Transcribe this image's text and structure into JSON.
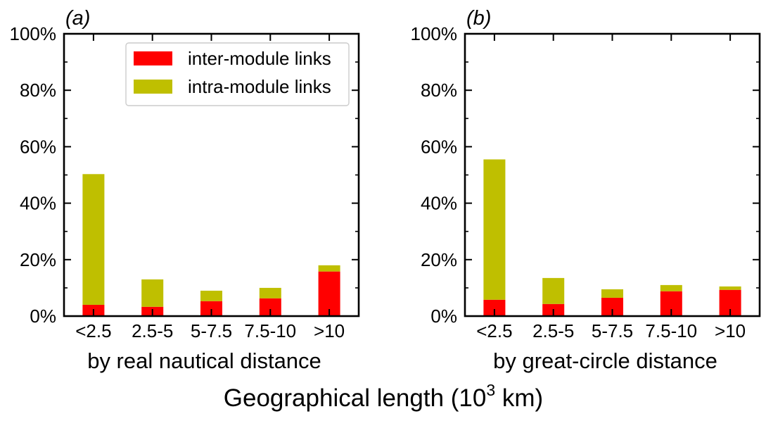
{
  "figure": {
    "shared_xlabel_main": "Geographical length (10",
    "shared_xlabel_exp": "3",
    "shared_xlabel_unit": " km)"
  },
  "chart_data": [
    {
      "type": "bar",
      "stacked": true,
      "panel_label": "(a)",
      "xlabel": "by real nautical distance",
      "ylabel": "",
      "categories": [
        "<2.5",
        "2.5-5",
        "5-7.5",
        "7.5-10",
        ">10"
      ],
      "yticks": [
        "0%",
        "20%",
        "40%",
        "60%",
        "80%",
        "100%"
      ],
      "ylim": [
        0,
        100
      ],
      "unit": "%",
      "grid": false,
      "legend": "top-right",
      "series": [
        {
          "name": "inter-module links",
          "color": "#ff0000",
          "values": [
            4.0,
            3.3,
            5.3,
            6.3,
            15.8
          ]
        },
        {
          "name": "intra-module links",
          "color": "#bfbf00",
          "values": [
            46.3,
            9.7,
            3.7,
            3.7,
            2.2
          ]
        }
      ]
    },
    {
      "type": "bar",
      "stacked": true,
      "panel_label": "(b)",
      "xlabel": "by great-circle distance",
      "ylabel": "",
      "categories": [
        "<2.5",
        "2.5-5",
        "5-7.5",
        "7.5-10",
        ">10"
      ],
      "yticks": [
        "0%",
        "20%",
        "40%",
        "60%",
        "80%",
        "100%"
      ],
      "ylim": [
        0,
        100
      ],
      "unit": "%",
      "grid": false,
      "legend": "none",
      "series": [
        {
          "name": "inter-module links",
          "color": "#ff0000",
          "values": [
            5.8,
            4.3,
            6.5,
            8.8,
            9.3
          ]
        },
        {
          "name": "intra-module links",
          "color": "#bfbf00",
          "values": [
            49.7,
            9.2,
            3.0,
            2.2,
            1.2
          ]
        }
      ]
    }
  ]
}
